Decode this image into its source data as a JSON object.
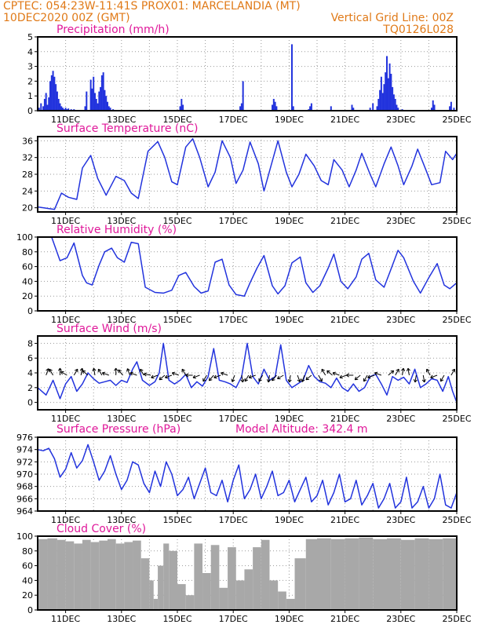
{
  "header": {
    "line1_left": "CPTEC:   054:23W-11:41S   PROX01: MARCELANDIA (MT)",
    "line2_left": "10DEC2020 00Z (GMT)",
    "line2_right": "Vertical Grid Line: 00Z",
    "line3_right": "TQ0126L028"
  },
  "colors": {
    "header": "#e07a18",
    "title": "#e0189a",
    "series": "#2233dd",
    "cloud": "#a8a8a8"
  },
  "x_tick_labels": [
    "11DEC",
    "13DEC",
    "15DEC",
    "17DEC",
    "19DEC",
    "21DEC",
    "23DEC",
    "25DEC"
  ],
  "x_range_days": [
    0,
    15
  ],
  "chart_data": [
    {
      "id": "precip",
      "type": "bar",
      "title": "Precipitation (mm/h)",
      "ylim": [
        0,
        5
      ],
      "yticks": [
        0,
        1,
        2,
        3,
        4,
        5
      ],
      "x": [
        0.05,
        0.12,
        0.2,
        0.25,
        0.3,
        0.35,
        0.4,
        0.45,
        0.5,
        0.55,
        0.6,
        0.65,
        0.7,
        0.75,
        0.8,
        0.85,
        0.9,
        0.95,
        1.0,
        1.05,
        1.1,
        1.2,
        1.3,
        1.7,
        1.75,
        1.9,
        1.95,
        2.0,
        2.05,
        2.1,
        2.15,
        2.2,
        2.25,
        2.3,
        2.35,
        2.4,
        2.45,
        2.5,
        2.55,
        2.6,
        2.7,
        5.1,
        5.15,
        5.2,
        7.25,
        7.3,
        7.35,
        8.4,
        8.45,
        8.5,
        8.55,
        9.1,
        9.15,
        9.7,
        9.75,
        9.8,
        10.5,
        11.25,
        11.3,
        11.9,
        12.0,
        12.15,
        12.2,
        12.25,
        12.3,
        12.35,
        12.4,
        12.45,
        12.5,
        12.55,
        12.6,
        12.65,
        12.7,
        12.75,
        12.8,
        12.85,
        12.9,
        13.05,
        14.1,
        14.15,
        14.2,
        14.75,
        14.8,
        14.9
      ],
      "values": [
        0.2,
        0.5,
        0.3,
        0.8,
        1.2,
        0.4,
        0.9,
        2.0,
        2.4,
        2.7,
        2.3,
        1.8,
        1.3,
        0.8,
        0.5,
        0.3,
        0.2,
        0.1,
        0.2,
        0.1,
        0.15,
        0.1,
        0.1,
        0.3,
        1.3,
        2.1,
        1.5,
        2.3,
        1.2,
        0.8,
        0.5,
        1.3,
        1.6,
        2.4,
        2.6,
        1.4,
        1.0,
        0.6,
        0.3,
        0.2,
        0.1,
        0.3,
        0.8,
        0.4,
        0.3,
        0.5,
        2.0,
        0.4,
        0.8,
        0.6,
        0.3,
        4.5,
        0.3,
        0.1,
        0.3,
        0.5,
        0.3,
        0.4,
        0.2,
        0.2,
        0.5,
        0.3,
        0.8,
        1.4,
        2.3,
        1.2,
        1.8,
        2.6,
        3.7,
        2.2,
        3.2,
        2.5,
        1.6,
        1.1,
        0.8,
        0.4,
        0.2,
        0.1,
        0.2,
        0.7,
        0.4,
        0.3,
        0.6,
        0.2
      ]
    },
    {
      "id": "temp",
      "type": "line",
      "title": "Surface Temperature (nC)",
      "ylim": [
        19,
        37
      ],
      "yticks": [
        20,
        24,
        28,
        32,
        36
      ],
      "x": [
        0,
        0.6,
        0.85,
        1.1,
        1.4,
        1.6,
        1.9,
        2.15,
        2.45,
        2.8,
        3.1,
        3.35,
        3.6,
        3.95,
        4.3,
        4.55,
        4.8,
        5.0,
        5.3,
        5.55,
        5.8,
        6.1,
        6.35,
        6.6,
        6.9,
        7.1,
        7.35,
        7.6,
        7.9,
        8.1,
        8.35,
        8.6,
        8.9,
        9.1,
        9.35,
        9.6,
        9.9,
        10.15,
        10.4,
        10.6,
        10.9,
        11.15,
        11.4,
        11.6,
        11.9,
        12.1,
        12.4,
        12.65,
        12.9,
        13.1,
        13.4,
        13.6,
        13.9,
        14.1,
        14.4,
        14.6,
        14.85,
        15
      ],
      "values": [
        20.2,
        19.6,
        23.5,
        22.5,
        22.0,
        29.5,
        32.5,
        27.0,
        23.0,
        27.5,
        26.5,
        23.5,
        22.2,
        33.5,
        35.8,
        32.0,
        26.2,
        25.5,
        34.5,
        36.5,
        32.0,
        25.0,
        28.5,
        36.0,
        32.0,
        25.8,
        29.0,
        35.7,
        30.5,
        24.0,
        30.0,
        36.0,
        28.5,
        25.0,
        28.0,
        32.8,
        30.0,
        26.5,
        25.5,
        31.5,
        29.0,
        25.0,
        29.0,
        33.0,
        28.0,
        25.0,
        30.5,
        34.5,
        30.0,
        25.5,
        30.0,
        34.0,
        29.0,
        25.5,
        26.0,
        33.5,
        31.5,
        33.0
      ]
    },
    {
      "id": "rh",
      "type": "line",
      "title": "Relative Humidity (%)",
      "ylim": [
        0,
        100
      ],
      "yticks": [
        0,
        20,
        40,
        60,
        80,
        100
      ],
      "x": [
        0,
        0.5,
        0.8,
        1.05,
        1.3,
        1.6,
        1.75,
        1.95,
        2.2,
        2.4,
        2.65,
        2.85,
        3.1,
        3.35,
        3.6,
        3.85,
        4.2,
        4.5,
        4.8,
        5.05,
        5.3,
        5.6,
        5.85,
        6.1,
        6.35,
        6.6,
        6.85,
        7.1,
        7.4,
        7.6,
        7.85,
        8.1,
        8.4,
        8.6,
        8.85,
        9.1,
        9.4,
        9.6,
        9.85,
        10.1,
        10.4,
        10.6,
        10.85,
        11.1,
        11.4,
        11.6,
        11.85,
        12.1,
        12.4,
        12.6,
        12.9,
        13.1,
        13.45,
        13.7,
        14.0,
        14.3,
        14.55,
        14.75,
        15
      ],
      "values": [
        100,
        100,
        68,
        72,
        92,
        48,
        38,
        35,
        62,
        80,
        85,
        72,
        66,
        93,
        91,
        32,
        25,
        24,
        28,
        48,
        52,
        33,
        24,
        27,
        66,
        70,
        35,
        22,
        20,
        38,
        58,
        75,
        34,
        23,
        34,
        65,
        73,
        38,
        25,
        34,
        58,
        77,
        40,
        30,
        46,
        70,
        78,
        42,
        32,
        52,
        82,
        72,
        40,
        24,
        45,
        64,
        35,
        30,
        38
      ]
    },
    {
      "id": "wind",
      "type": "line",
      "title": "Surface Wind (m/s)",
      "ylim": [
        -1,
        9
      ],
      "yticks": [
        0,
        2,
        4,
        6,
        8
      ],
      "x": [
        0,
        0.3,
        0.55,
        0.8,
        1.0,
        1.2,
        1.4,
        1.6,
        1.8,
        2.0,
        2.2,
        2.4,
        2.6,
        2.8,
        3.0,
        3.2,
        3.4,
        3.55,
        3.75,
        4.0,
        4.2,
        4.35,
        4.5,
        4.7,
        4.9,
        5.1,
        5.3,
        5.5,
        5.7,
        5.9,
        6.1,
        6.3,
        6.5,
        6.7,
        6.9,
        7.1,
        7.3,
        7.5,
        7.7,
        7.9,
        8.1,
        8.3,
        8.5,
        8.7,
        8.9,
        9.1,
        9.3,
        9.5,
        9.7,
        9.9,
        10.1,
        10.3,
        10.5,
        10.7,
        10.9,
        11.1,
        11.3,
        11.5,
        11.7,
        11.9,
        12.1,
        12.3,
        12.5,
        12.7,
        12.9,
        13.1,
        13.3,
        13.5,
        13.7,
        13.9,
        14.1,
        14.3,
        14.5,
        14.7,
        14.85,
        15
      ],
      "values": [
        2.0,
        1.0,
        3.0,
        0.5,
        2.5,
        3.5,
        1.5,
        2.5,
        4.0,
        3.2,
        2.6,
        2.8,
        3.0,
        2.3,
        3.0,
        2.7,
        4.5,
        5.5,
        3.0,
        2.3,
        2.8,
        4.0,
        8.0,
        3.0,
        2.5,
        3.0,
        3.8,
        2.0,
        2.8,
        2.2,
        3.5,
        7.3,
        3.0,
        2.8,
        2.5,
        2.0,
        3.5,
        8.0,
        3.5,
        2.5,
        4.5,
        3.0,
        3.5,
        7.8,
        3.0,
        2.0,
        2.5,
        3.0,
        5.0,
        3.5,
        2.8,
        2.6,
        2.0,
        3.3,
        2.0,
        1.5,
        2.5,
        1.5,
        2.0,
        3.5,
        3.8,
        2.5,
        1.0,
        3.5,
        3.0,
        3.4,
        2.5,
        4.5,
        2.0,
        2.5,
        3.2,
        3.0,
        1.5,
        3.5,
        1.5,
        0.0
      ],
      "arrows_x": [
        0.3,
        0.55,
        0.8,
        1.05,
        1.3,
        1.55,
        1.8,
        2.05,
        2.3,
        2.55,
        2.8,
        3.05,
        3.3,
        3.55,
        3.8,
        4.05,
        4.3,
        4.55,
        4.8,
        5.05,
        5.3,
        5.55,
        5.8,
        6.05,
        6.3,
        6.55,
        6.8,
        7.05,
        7.3,
        7.55,
        7.8,
        8.05,
        8.3,
        8.55,
        8.8,
        9.05,
        9.3,
        9.55,
        9.8,
        10.05,
        10.3,
        10.55,
        10.8,
        11.05,
        11.3,
        11.55,
        11.8,
        12.05,
        12.3,
        12.55,
        12.8,
        13.05,
        13.3,
        13.55,
        13.8,
        14.05,
        14.3,
        14.55,
        14.8
      ],
      "arrows_dir_deg": [
        70,
        120,
        90,
        150,
        60,
        80,
        140,
        100,
        120,
        160,
        90,
        130,
        110,
        160,
        120,
        170,
        200,
        220,
        200,
        160,
        120,
        180,
        200,
        240,
        230,
        200,
        160,
        250,
        280,
        240,
        200,
        240,
        260,
        230,
        210,
        260,
        290,
        250,
        220,
        300,
        120,
        140,
        160,
        200,
        180,
        220,
        240,
        200,
        160,
        40,
        60,
        80,
        100,
        260,
        280,
        120,
        200,
        240,
        60
      ]
    },
    {
      "id": "pres",
      "type": "line",
      "title": "Surface Pressure (hPa)",
      "annotation": "Model Altitude: 342.4 m",
      "ylim": [
        964,
        976
      ],
      "yticks": [
        964,
        966,
        968,
        970,
        972,
        974,
        976
      ],
      "x": [
        0,
        0.2,
        0.4,
        0.6,
        0.8,
        1.0,
        1.2,
        1.4,
        1.6,
        1.8,
        2.0,
        2.2,
        2.4,
        2.6,
        2.8,
        3.0,
        3.2,
        3.4,
        3.6,
        3.8,
        4.0,
        4.2,
        4.4,
        4.6,
        4.8,
        5.0,
        5.2,
        5.4,
        5.6,
        5.8,
        6.0,
        6.2,
        6.4,
        6.6,
        6.8,
        7.0,
        7.2,
        7.4,
        7.6,
        7.8,
        8.0,
        8.2,
        8.4,
        8.6,
        8.8,
        9.0,
        9.2,
        9.4,
        9.6,
        9.8,
        10.0,
        10.2,
        10.4,
        10.6,
        10.8,
        11.0,
        11.2,
        11.4,
        11.6,
        11.8,
        12.0,
        12.2,
        12.4,
        12.6,
        12.8,
        13.0,
        13.2,
        13.4,
        13.6,
        13.8,
        14.0,
        14.2,
        14.4,
        14.6,
        14.8,
        15
      ],
      "values": [
        974.0,
        973.8,
        974.2,
        972.5,
        969.5,
        970.8,
        973.5,
        971.0,
        972.2,
        974.8,
        972.0,
        969.0,
        970.5,
        973.0,
        970.0,
        967.5,
        969.0,
        972.0,
        971.5,
        968.5,
        967.0,
        970.5,
        968.0,
        972.0,
        970.0,
        966.5,
        967.5,
        969.5,
        966.0,
        968.5,
        971.0,
        967.0,
        966.5,
        969.0,
        965.5,
        969.0,
        971.5,
        966.0,
        967.5,
        970.0,
        966.0,
        968.0,
        970.5,
        966.5,
        967.0,
        969.0,
        965.5,
        967.5,
        969.5,
        965.5,
        966.5,
        969.0,
        965.0,
        967.0,
        970.0,
        965.5,
        966.0,
        969.0,
        965.0,
        966.5,
        968.5,
        964.5,
        966.0,
        968.5,
        964.5,
        965.5,
        969.5,
        964.5,
        965.5,
        968.0,
        964.5,
        966.0,
        970.0,
        965.0,
        964.5,
        967.0
      ]
    },
    {
      "id": "cloud",
      "type": "bar",
      "title": "Cloud Cover (%)",
      "ylim": [
        0,
        100
      ],
      "yticks": [
        0,
        20,
        40,
        60,
        80,
        100
      ],
      "x": [
        0,
        0.35,
        0.7,
        1.0,
        1.3,
        1.6,
        1.9,
        2.2,
        2.5,
        2.8,
        3.1,
        3.4,
        3.7,
        4.0,
        4.15,
        4.3,
        4.5,
        4.7,
        5.0,
        5.3,
        5.6,
        5.9,
        6.2,
        6.5,
        6.8,
        7.1,
        7.4,
        7.7,
        8.0,
        8.3,
        8.6,
        8.9,
        9.2,
        9.6,
        10.0,
        10.5,
        11.0,
        11.5,
        12.0,
        12.5,
        13.0,
        13.5,
        14.0,
        14.5,
        15
      ],
      "values": [
        96,
        97,
        95,
        93,
        90,
        95,
        92,
        94,
        96,
        90,
        92,
        94,
        70,
        40,
        15,
        60,
        90,
        80,
        35,
        20,
        90,
        50,
        88,
        30,
        85,
        40,
        55,
        85,
        95,
        40,
        25,
        15,
        70,
        96,
        97,
        96,
        97,
        98,
        96,
        97,
        95,
        97,
        96,
        97,
        97
      ]
    }
  ]
}
